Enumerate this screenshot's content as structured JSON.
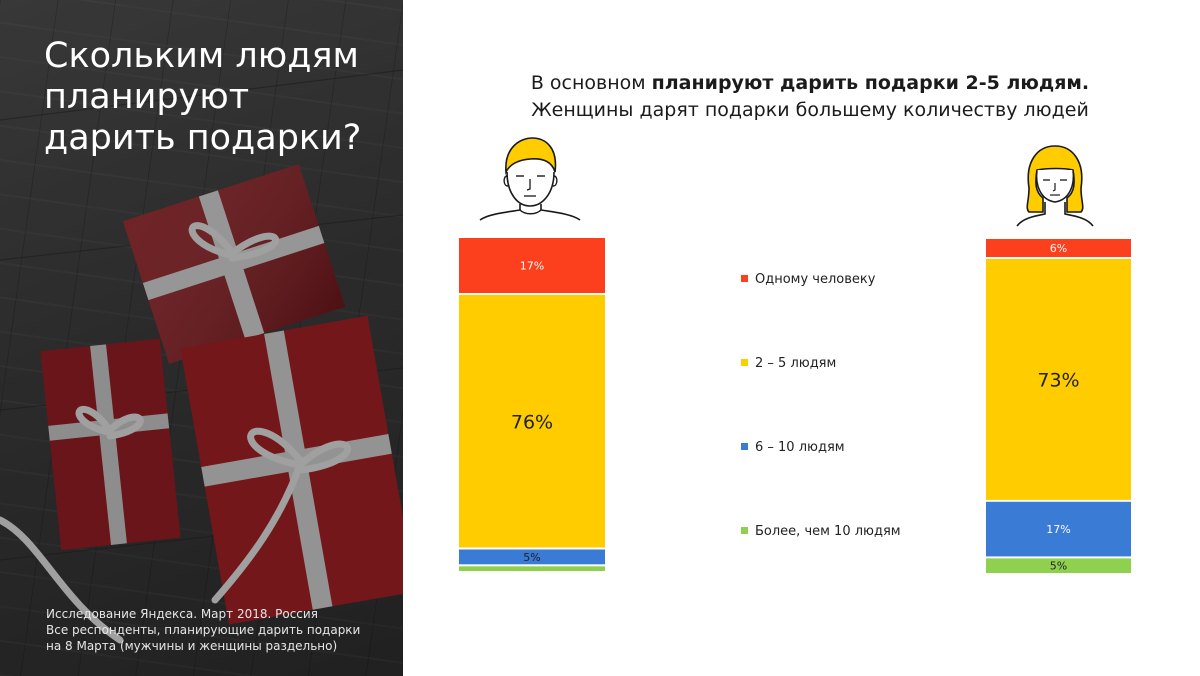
{
  "left_panel": {
    "title": "Скольким людям планируют дарить подарки?",
    "note_lines": [
      "Исследование Яндекса. Март 2018. Россия",
      "Все респонденты, планирующие дарить подарки",
      "на 8 Марта (мужчины и женщины раздельно)"
    ]
  },
  "headline": {
    "line1_normal": "В основном ",
    "line1_bold": "планируют дарить подарки 2-5 людям.",
    "line2": "Женщины дарят подарки большему количеству людей"
  },
  "icons": {
    "man": "man-avatar-icon",
    "woman": "woman-avatar-icon"
  },
  "chart_data": {
    "type": "bar",
    "stacked": true,
    "orientation": "vertical",
    "unit": "%",
    "categories": [
      "",
      ""
    ],
    "series": [
      {
        "name": "Одному человеку",
        "color": "#fc3f1d",
        "values": [
          17,
          6
        ]
      },
      {
        "name": "2 – 5 людям",
        "color": "#ffcc00",
        "values": [
          76,
          73
        ]
      },
      {
        "name": "6 – 10 людям",
        "color": "#3a7bd5",
        "values": [
          5,
          17
        ]
      },
      {
        "name": "Более, чем 10 людям",
        "color": "#8fd14f",
        "values": [
          2,
          5
        ]
      }
    ],
    "data_labels": [
      [
        "17%",
        "6%"
      ],
      [
        "76%",
        "73%"
      ],
      [
        "5%",
        "17%"
      ],
      [
        "",
        "5%"
      ]
    ],
    "legend_position": "center"
  }
}
